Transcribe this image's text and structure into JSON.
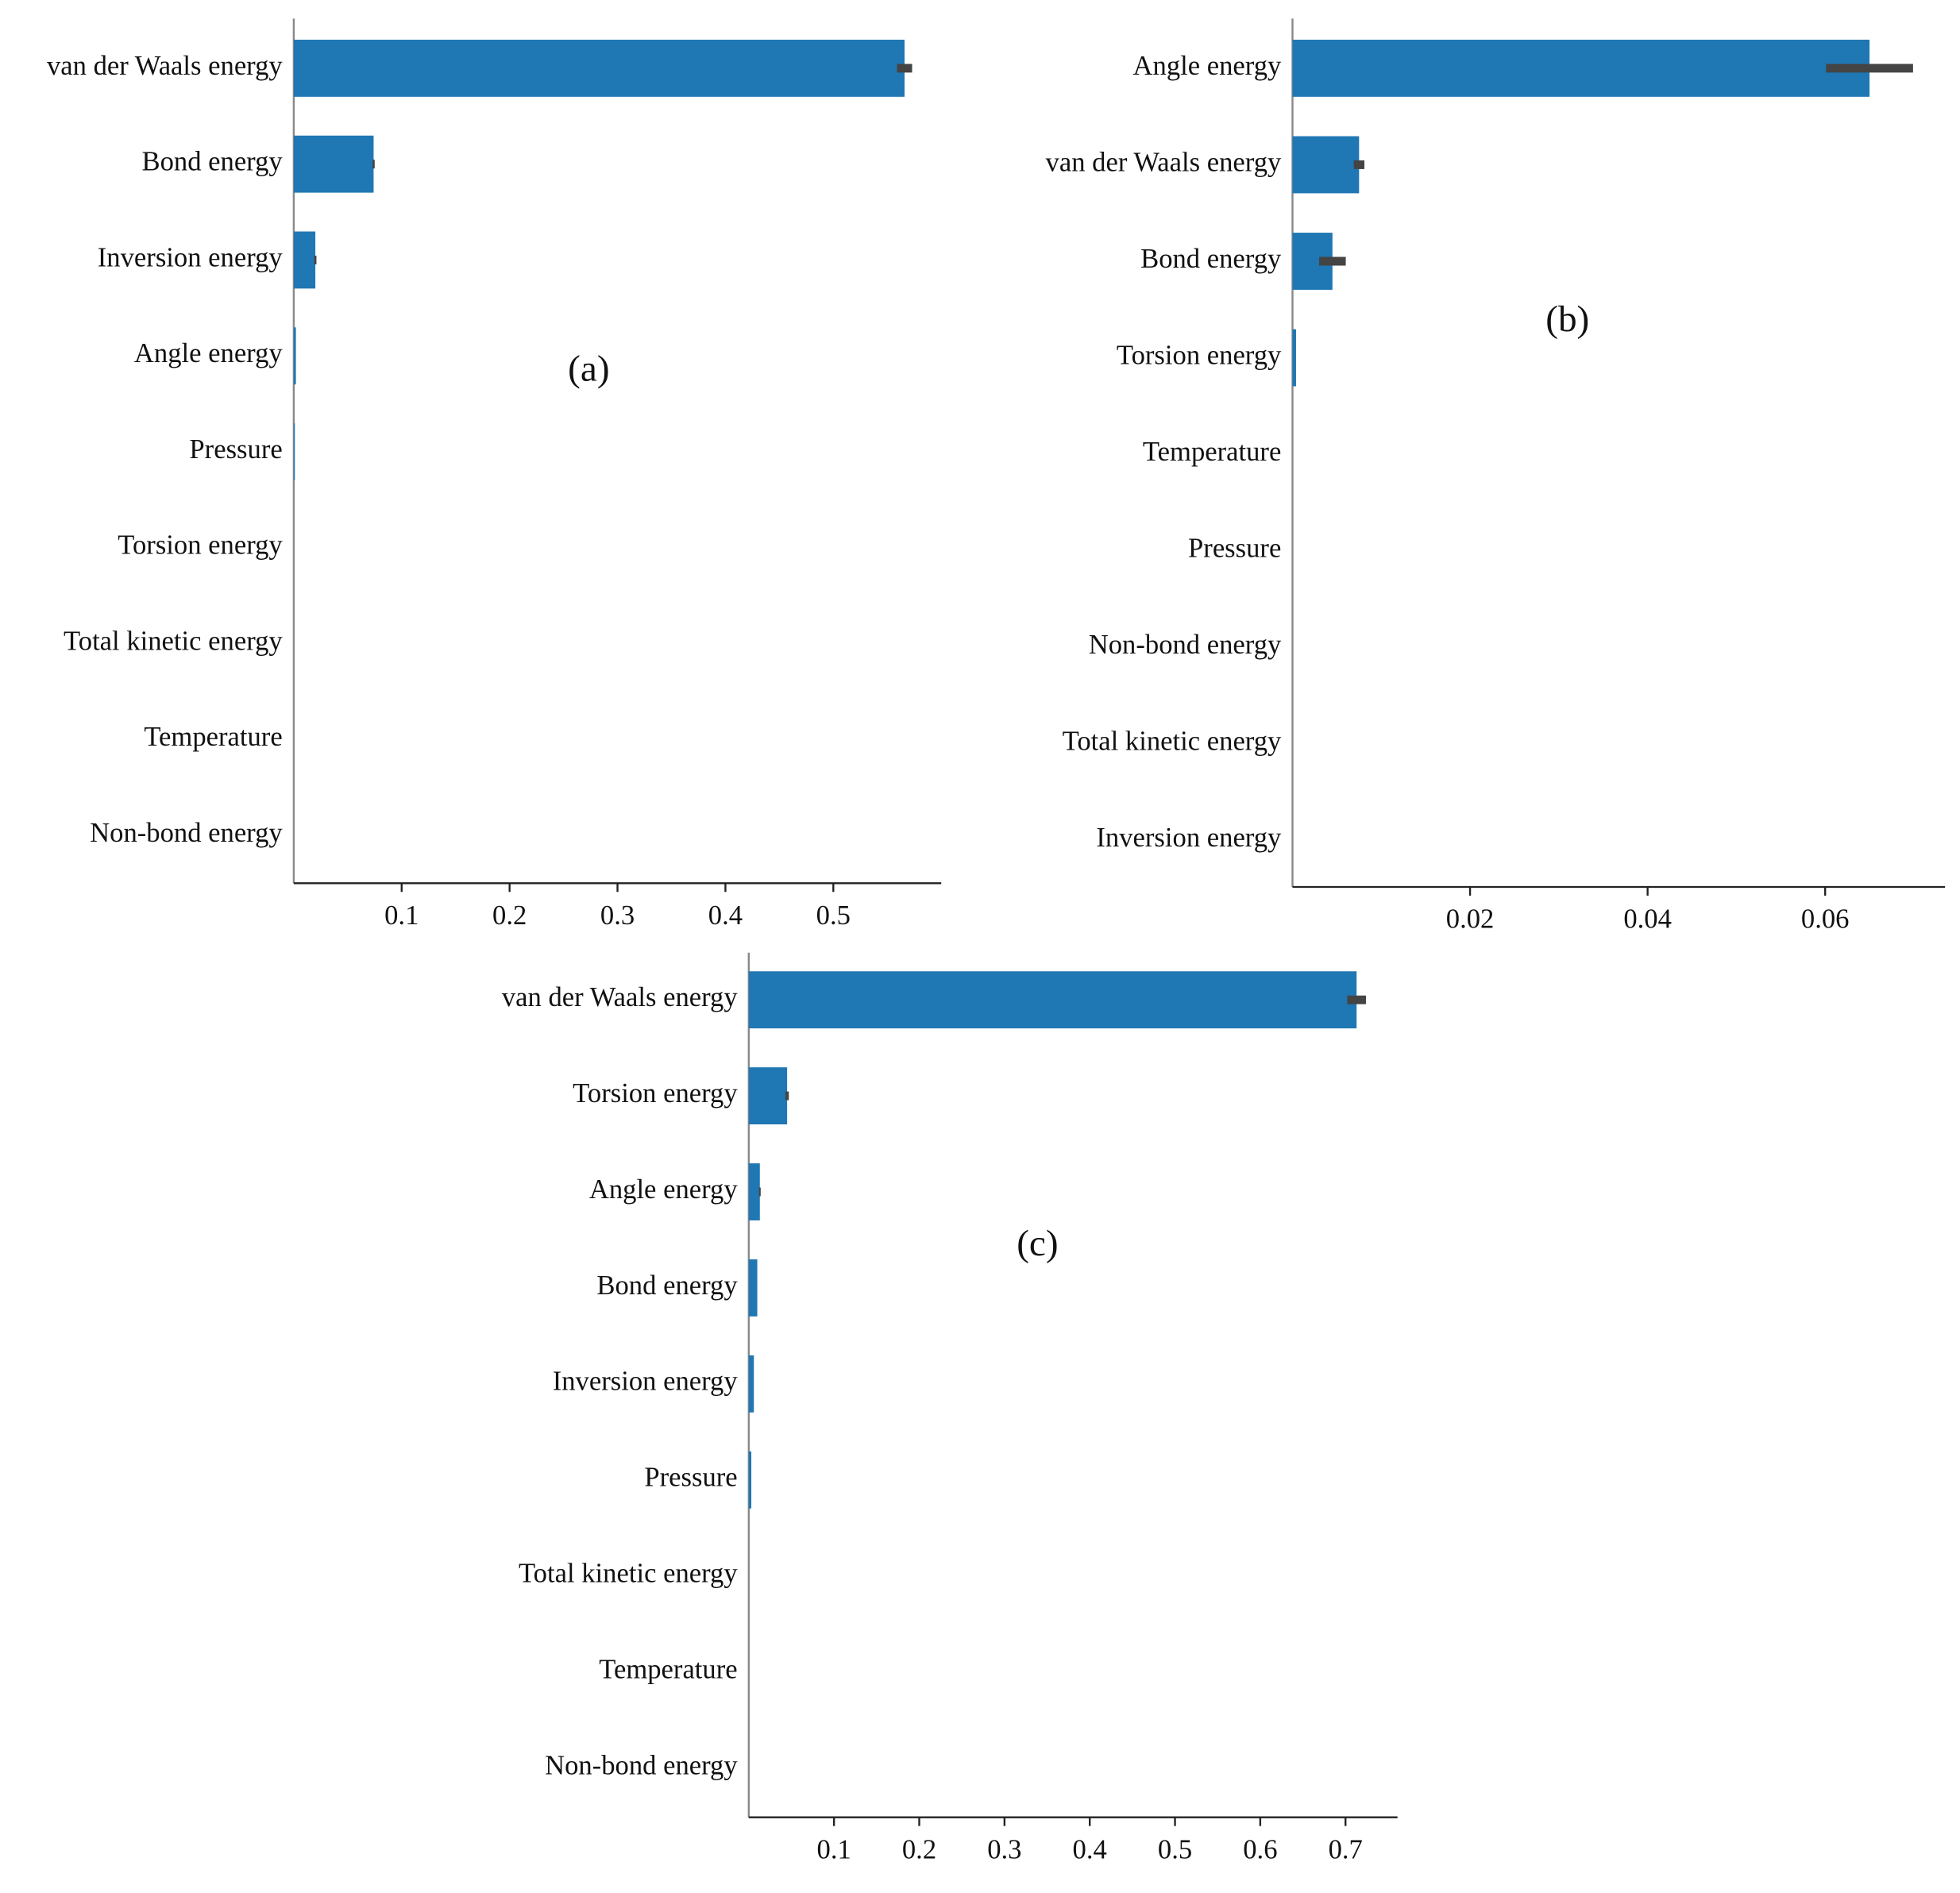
{
  "chart_data": [
    {
      "type": "bar",
      "orientation": "horizontal",
      "annotation": "(a)",
      "color": "#1f77b4",
      "error_color": "#444444",
      "categories": [
        "van der Waals energy",
        "Bond energy",
        "Inversion energy",
        "Angle energy",
        "Pressure",
        "Torsion energy",
        "Total kinetic energy",
        "Temperature",
        "Non-bond energy"
      ],
      "values": [
        0.566,
        0.074,
        0.02,
        0.002,
        0.001,
        0,
        0,
        0,
        0
      ],
      "errors": [
        0.007,
        0.001,
        0.001,
        0,
        0,
        0,
        0,
        0,
        0
      ],
      "xlim": [
        0,
        0.6
      ],
      "xticks": [
        0.1,
        0.2,
        0.3,
        0.4,
        0.5
      ]
    },
    {
      "type": "bar",
      "orientation": "horizontal",
      "annotation": "(b)",
      "color": "#1f77b4",
      "error_color": "#444444",
      "categories": [
        "Angle energy",
        "van der Waals energy",
        "Bond energy",
        "Torsion energy",
        "Temperature",
        "Pressure",
        "Non-bond energy",
        "Total kinetic energy",
        "Inversion energy"
      ],
      "values": [
        0.065,
        0.0075,
        0.0045,
        0.0004,
        0,
        0,
        0,
        0,
        0
      ],
      "errors": [
        0.0049,
        0.0006,
        0.0015,
        0,
        0,
        0,
        0,
        0,
        0
      ],
      "xlim": [
        0,
        0.0735
      ],
      "xticks": [
        0.02,
        0.04,
        0.06
      ]
    },
    {
      "type": "bar",
      "orientation": "horizontal",
      "annotation": "(c)",
      "color": "#1f77b4",
      "error_color": "#444444",
      "categories": [
        "van der Waals energy",
        "Torsion energy",
        "Angle energy",
        "Bond energy",
        "Inversion energy",
        "Pressure",
        "Total kinetic energy",
        "Temperature",
        "Non-bond energy"
      ],
      "values": [
        0.713,
        0.045,
        0.013,
        0.01,
        0.006,
        0.003,
        0,
        0,
        0
      ],
      "errors": [
        0.011,
        0.002,
        0.001,
        0,
        0,
        0,
        0,
        0,
        0
      ],
      "xlim": [
        0,
        0.761
      ],
      "xticks": [
        0.1,
        0.2,
        0.3,
        0.4,
        0.5,
        0.6,
        0.7
      ]
    }
  ]
}
